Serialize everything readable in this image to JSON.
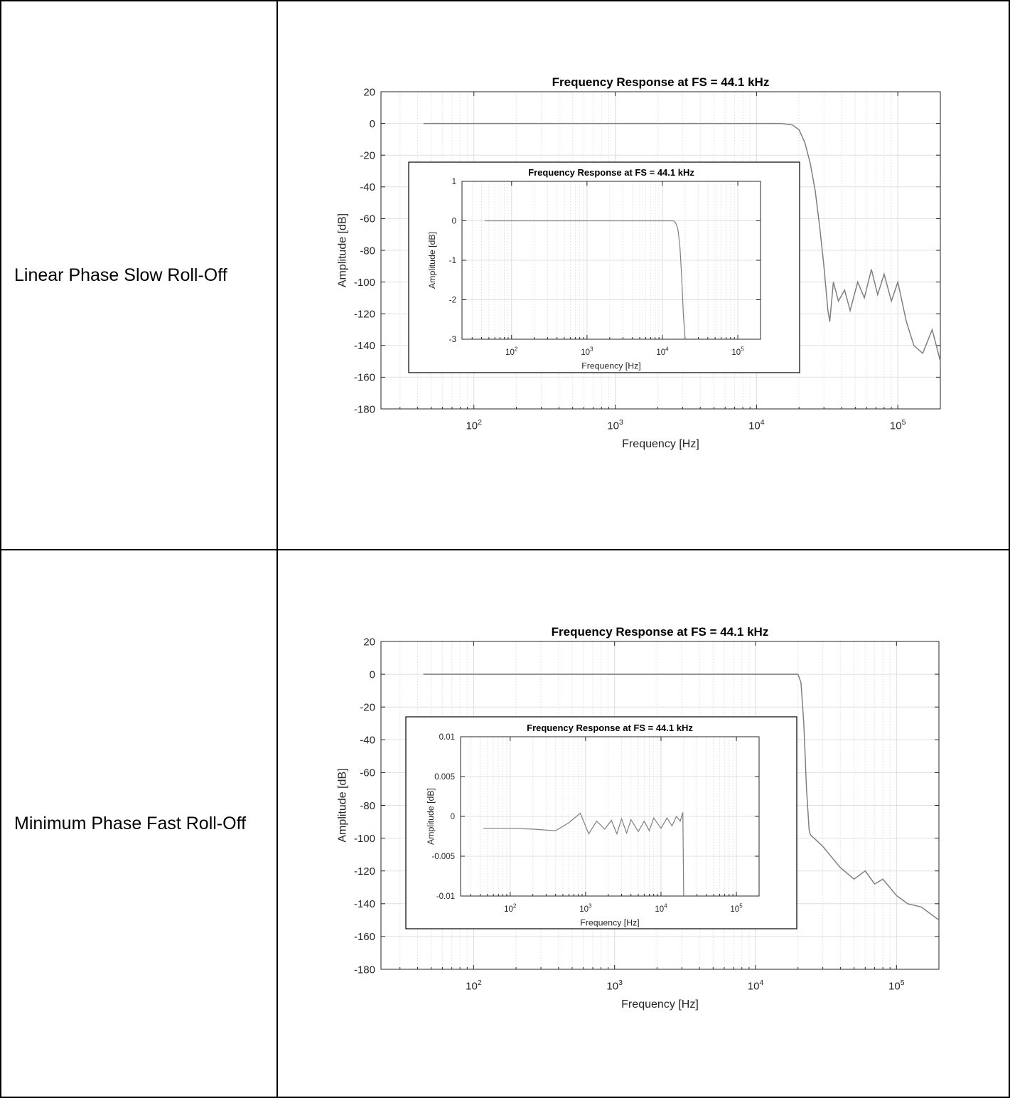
{
  "rows": [
    {
      "label": "Linear Phase Slow Roll-Off",
      "main_chart": {
        "type": "line",
        "title": "Frequency Response at FS = 44.1 kHz",
        "xlabel": "Frequency [Hz]",
        "ylabel": "Amplitude [dB]",
        "xscale": "log",
        "xlim": [
          22,
          200000
        ],
        "ylim": [
          -180,
          20
        ],
        "yticks": [
          "20",
          "0",
          "-20",
          "-40",
          "-60",
          "-80",
          "-100",
          "-120",
          "-140",
          "-160",
          "-180"
        ],
        "xticks": [
          {
            "base": "10",
            "exp": "2"
          },
          {
            "base": "10",
            "exp": "3"
          },
          {
            "base": "10",
            "exp": "4"
          },
          {
            "base": "10",
            "exp": "5"
          }
        ],
        "grid": true,
        "series": [
          {
            "x": [
              44,
              1000,
              10000,
              15000,
              18000,
              20000,
              22000,
              24000,
              26000,
              28000,
              30000,
              32000,
              33000,
              35000,
              38000,
              42000,
              46000,
              52000,
              58000,
              65000,
              72000,
              80000,
              90000,
              100000,
              115000,
              130000,
              150000,
              175000,
              200000
            ],
            "y": [
              0,
              0,
              0,
              0,
              -1,
              -4,
              -12,
              -25,
              -42,
              -65,
              -90,
              -118,
              -125,
              -100,
              -112,
              -105,
              -118,
              -100,
              -110,
              -92,
              -108,
              -95,
              -112,
              -100,
              -125,
              -140,
              -145,
              -130,
              -150
            ]
          }
        ]
      },
      "inset_chart": {
        "type": "line",
        "title": "Frequency Response at FS = 44.1 kHz",
        "xlabel": "Frequency [Hz]",
        "ylabel": "Amplitude [dB]",
        "xscale": "log",
        "xlim": [
          22,
          200000
        ],
        "ylim": [
          -3,
          1
        ],
        "yticks": [
          "1",
          "0",
          "-1",
          "-2",
          "-3"
        ],
        "xticks": [
          {
            "base": "10",
            "exp": "2"
          },
          {
            "base": "10",
            "exp": "3"
          },
          {
            "base": "10",
            "exp": "4"
          },
          {
            "base": "10",
            "exp": "5"
          }
        ],
        "grid": true,
        "series": [
          {
            "x": [
              44,
              1000,
              10000,
              14000,
              15000,
              16000,
              17000,
              18000,
              19000,
              20000
            ],
            "y": [
              0,
              0,
              0,
              0,
              -0.05,
              -0.2,
              -0.6,
              -1.4,
              -2.4,
              -3
            ]
          }
        ]
      }
    },
    {
      "label": "Minimum Phase Fast Roll-Off",
      "main_chart": {
        "type": "line",
        "title": "Frequency Response at FS = 44.1 kHz",
        "xlabel": "Frequency [Hz]",
        "ylabel": "Amplitude [dB]",
        "xscale": "log",
        "xlim": [
          22,
          200000
        ],
        "ylim": [
          -180,
          20
        ],
        "yticks": [
          "20",
          "0",
          "-20",
          "-40",
          "-60",
          "-80",
          "-100",
          "-120",
          "-140",
          "-160",
          "-180"
        ],
        "xticks": [
          {
            "base": "10",
            "exp": "2"
          },
          {
            "base": "10",
            "exp": "3"
          },
          {
            "base": "10",
            "exp": "4"
          },
          {
            "base": "10",
            "exp": "5"
          }
        ],
        "grid": true,
        "series": [
          {
            "x": [
              44,
              1000,
              10000,
              20000,
              21000,
              22000,
              23000,
              24000,
              24500,
              26000,
              30000,
              35000,
              40000,
              50000,
              60000,
              70000,
              80000,
              100000,
              120000,
              150000,
              200000
            ],
            "y": [
              0,
              0,
              0,
              0,
              -5,
              -30,
              -70,
              -95,
              -98,
              -100,
              -105,
              -112,
              -118,
              -125,
              -120,
              -128,
              -125,
              -135,
              -140,
              -142,
              -150
            ]
          }
        ]
      },
      "inset_chart": {
        "type": "line",
        "title": "Frequency Response at FS = 44.1 kHz",
        "xlabel": "Frequency [Hz]",
        "ylabel": "Amplitude [dB]",
        "xscale": "log",
        "xlim": [
          22,
          200000
        ],
        "ylim": [
          -0.01,
          0.01
        ],
        "yticks": [
          "0.01",
          "0.005",
          "0",
          "-0.005",
          "-0.01"
        ],
        "xticks": [
          {
            "base": "10",
            "exp": "2"
          },
          {
            "base": "10",
            "exp": "3"
          },
          {
            "base": "10",
            "exp": "4"
          },
          {
            "base": "10",
            "exp": "5"
          }
        ],
        "grid": true,
        "series": [
          {
            "x": [
              44,
              100,
              200,
              400,
              600,
              850,
              1100,
              1400,
              1800,
              2200,
              2600,
              3000,
              3500,
              4000,
              5000,
              6000,
              7000,
              8000,
              10000,
              12000,
              14000,
              16000,
              18000,
              19500,
              20000
            ],
            "y": [
              -0.0015,
              -0.0015,
              -0.0016,
              -0.0018,
              -0.0008,
              0.0004,
              -0.0022,
              -0.0006,
              -0.0016,
              -0.0005,
              -0.0022,
              -0.0003,
              -0.0021,
              -0.0004,
              -0.0019,
              -0.0006,
              -0.0018,
              -0.0002,
              -0.0015,
              -0.0002,
              -0.0012,
              0.0,
              -0.0006,
              0.0005,
              -0.01
            ]
          }
        ]
      }
    }
  ]
}
